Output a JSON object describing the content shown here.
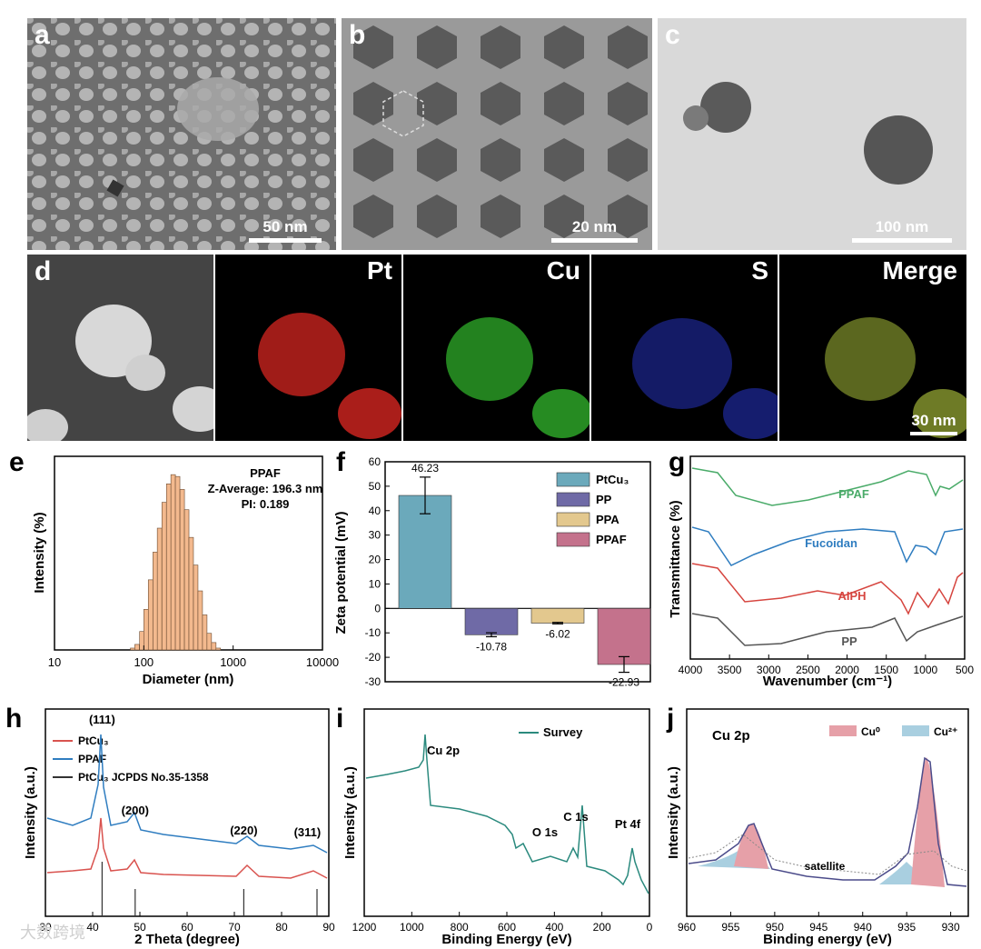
{
  "panels": {
    "a": {
      "label": "a",
      "scale": "50 nm"
    },
    "b": {
      "label": "b",
      "scale": "20 nm"
    },
    "c": {
      "label": "c",
      "scale": "100 nm"
    },
    "d": {
      "label": "d",
      "elements": [
        "Pt",
        "Cu",
        "S",
        "Merge"
      ],
      "scale": "30 nm"
    }
  },
  "watermark": "大数跨境",
  "chart_data": [
    {
      "panel": "e",
      "type": "bar",
      "title": "PPAF",
      "annotations": [
        "Z-Average: 196.3 nm",
        "PI: 0.189"
      ],
      "xlabel": "Diameter (nm)",
      "ylabel": "Intensity (%)",
      "xscale": "log",
      "xlim": [
        10,
        10000
      ],
      "xticks": [
        "10",
        "100",
        "1000",
        "10000"
      ],
      "bin_centers": [
        75,
        84,
        95,
        106,
        119,
        134,
        150,
        169,
        190,
        213,
        239,
        269,
        302,
        339,
        381,
        428,
        481,
        540,
        607,
        681
      ],
      "values": [
        1,
        3,
        10,
        22,
        38,
        53,
        66,
        80,
        90,
        95,
        94,
        87,
        76,
        61,
        46,
        32,
        19,
        9,
        4,
        1
      ],
      "color": "#f3b98e"
    },
    {
      "panel": "f",
      "type": "bar",
      "ylabel": "Zeta potential (mV)",
      "ylim": [
        -30,
        60
      ],
      "yticks": [
        "-30",
        "-20",
        "-10",
        "0",
        "10",
        "20",
        "30",
        "40",
        "50",
        "60"
      ],
      "categories": [
        "PtCu3",
        "PP",
        "PPA",
        "PPAF"
      ],
      "legend": [
        "PtCu₃",
        "PP",
        "PPA",
        "PPAF"
      ],
      "values": [
        46.23,
        -10.78,
        -6.02,
        -22.93
      ],
      "value_labels": [
        "46.23",
        "-10.78",
        "-6.02",
        "-22.93"
      ],
      "errors": [
        7.5,
        0.8,
        0.3,
        3.2
      ],
      "colors": [
        "#6ba9bb",
        "#6f6aa6",
        "#e3c88e",
        "#c4728c"
      ]
    },
    {
      "panel": "g",
      "type": "line",
      "xlabel": "Wavenumber (cm⁻¹)",
      "ylabel": "Transmittance (%)",
      "xlim": [
        4000,
        500
      ],
      "xticks": [
        "4000",
        "3500",
        "3000",
        "2500",
        "2000",
        "1500",
        "1000",
        "500"
      ],
      "series": [
        {
          "name": "PPAF",
          "color": "#4aab69"
        },
        {
          "name": "Fucoidan",
          "color": "#2f7dc0"
        },
        {
          "name": "AIPH",
          "color": "#d6453f"
        },
        {
          "name": "PP",
          "color": "#555555"
        }
      ]
    },
    {
      "panel": "h",
      "type": "line",
      "xlabel": "2 Theta (degree)",
      "ylabel": "Intensity (a.u.)",
      "xlim": [
        30,
        90
      ],
      "xticks": [
        "30",
        "40",
        "50",
        "60",
        "70",
        "80",
        "90"
      ],
      "series": [
        {
          "name": "PtCu₃",
          "color": "#d9534f"
        },
        {
          "name": "PPAF",
          "color": "#2f7dc0"
        },
        {
          "name": "PtCu₃ JCPDS No.35-1358",
          "color": "#333333"
        }
      ],
      "peaks": [
        {
          "x": 42,
          "label": "(111)"
        },
        {
          "x": 49,
          "label": "(200)"
        },
        {
          "x": 72,
          "label": "(220)"
        },
        {
          "x": 87,
          "label": "(311)"
        }
      ],
      "reference_lines": [
        42,
        49,
        72,
        87.5
      ]
    },
    {
      "panel": "i",
      "type": "line",
      "xlabel": "Binding Energy (eV)",
      "ylabel": "Intensity (a.u.)",
      "xlim": [
        1200,
        0
      ],
      "xticks": [
        "1200",
        "1000",
        "800",
        "600",
        "400",
        "200",
        "0"
      ],
      "series": [
        {
          "name": "Survey",
          "color": "#2b8a7e"
        }
      ],
      "annotations": [
        "Cu 2p",
        "O 1s",
        "C 1s",
        "Pt 4f"
      ]
    },
    {
      "panel": "j",
      "type": "line",
      "title": "Cu 2p",
      "xlabel": "Binding energy (eV)",
      "ylabel": "Intensity (a.u.)",
      "xlim": [
        960,
        928
      ],
      "xticks": [
        "960",
        "955",
        "950",
        "945",
        "940",
        "935",
        "930"
      ],
      "legend": [
        "Cu⁰",
        "Cu²⁺"
      ],
      "annotations": [
        "satellite"
      ],
      "colors": {
        "cu0": "#e6a0a8",
        "cu2": "#a9cfe0"
      }
    }
  ]
}
